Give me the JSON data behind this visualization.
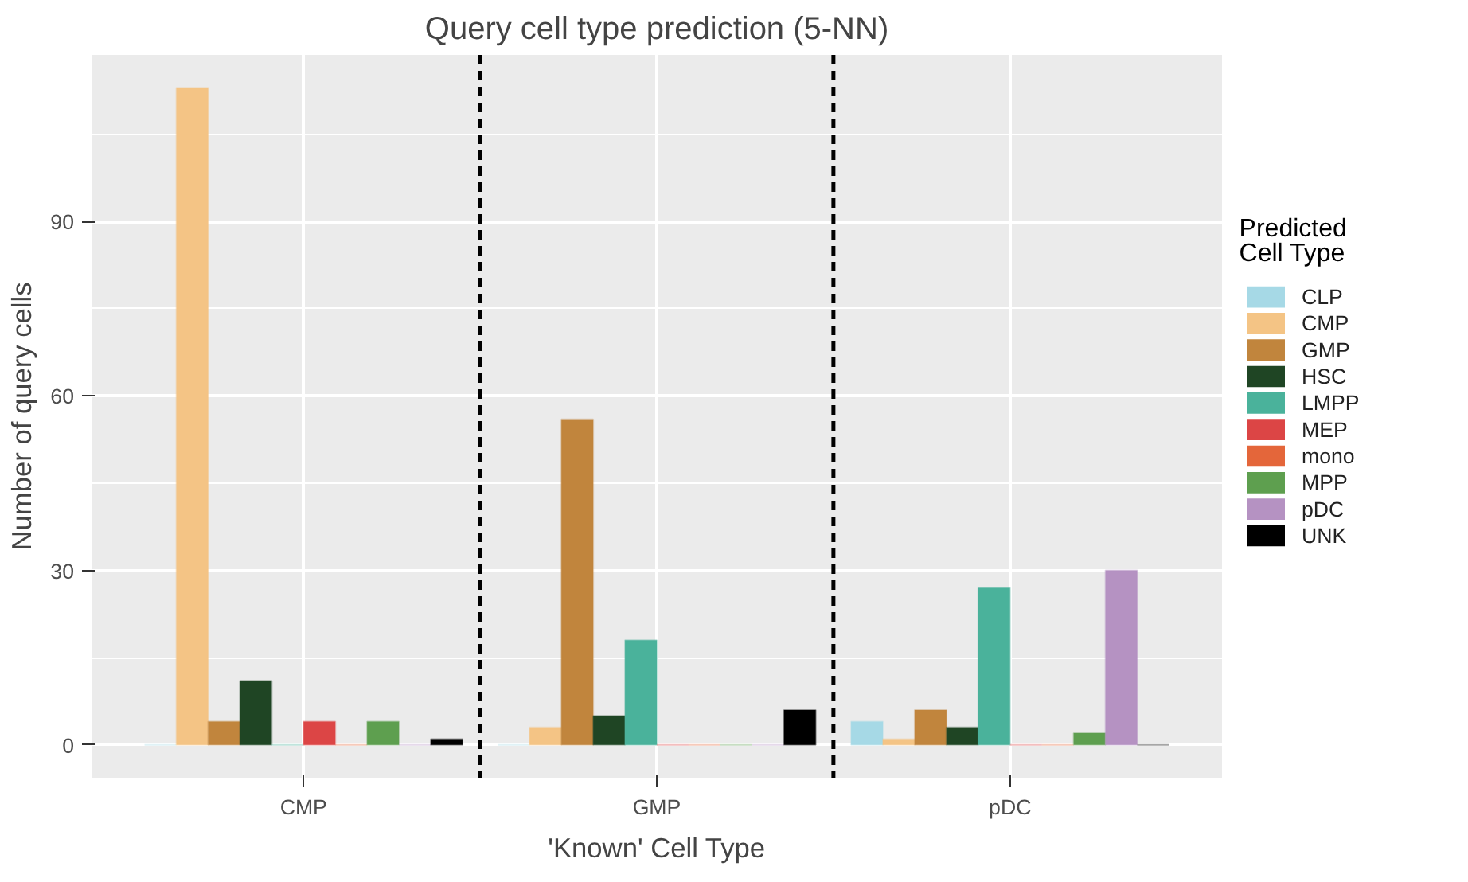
{
  "chart_data": {
    "type": "bar",
    "title": "Query cell type prediction (5-NN)",
    "xlabel": "'Known' Cell Type",
    "ylabel": "Number of query cells",
    "legend_title": "Predicted Cell Type",
    "categories": [
      "CMP",
      "GMP",
      "pDC"
    ],
    "ylim": [
      -5.65,
      118.65
    ],
    "yticks": [
      0,
      30,
      60,
      90
    ],
    "grid": true,
    "legend": "right",
    "series": [
      {
        "name": "CLP",
        "color": "#a6d9e6",
        "values": [
          0,
          0,
          4
        ]
      },
      {
        "name": "CMP",
        "color": "#f4c485",
        "values": [
          113,
          3,
          1
        ]
      },
      {
        "name": "GMP",
        "color": "#c1853d",
        "values": [
          4,
          56,
          6
        ]
      },
      {
        "name": "HSC",
        "color": "#1f4524",
        "values": [
          11,
          5,
          3
        ]
      },
      {
        "name": "LMPP",
        "color": "#4ab29b",
        "values": [
          0,
          18,
          27
        ]
      },
      {
        "name": "MEP",
        "color": "#dc4545",
        "values": [
          4,
          0,
          0
        ]
      },
      {
        "name": "mono",
        "color": "#e4663a",
        "values": [
          0,
          0,
          0
        ]
      },
      {
        "name": "MPP",
        "color": "#5e9f4f",
        "values": [
          4,
          0,
          2
        ]
      },
      {
        "name": "pDC",
        "color": "#b592c2",
        "values": [
          0,
          0,
          30
        ]
      },
      {
        "name": "UNK",
        "color": "#000000",
        "values": [
          1,
          6,
          0
        ]
      }
    ]
  }
}
